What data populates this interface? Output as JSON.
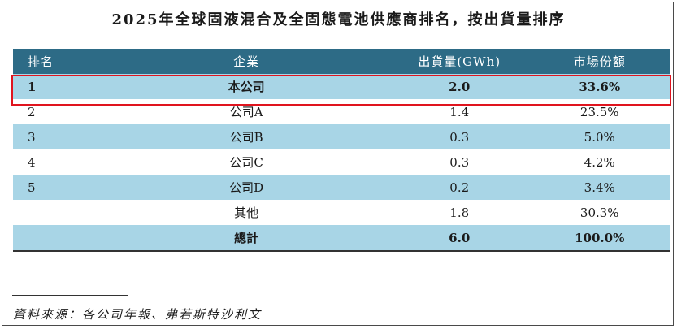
{
  "title": "2025年全球固液混合及全固態電池供應商排名，按出貨量排序",
  "table": {
    "headers": [
      "排名",
      "企業",
      "出貨量(GWh)",
      "市場份額"
    ],
    "rows": [
      {
        "rank": "1",
        "company": "本公司",
        "shipment": "2.0",
        "share": "33.6%"
      },
      {
        "rank": "2",
        "company": "公司A",
        "shipment": "1.4",
        "share": "23.5%"
      },
      {
        "rank": "3",
        "company": "公司B",
        "shipment": "0.3",
        "share": "5.0%"
      },
      {
        "rank": "4",
        "company": "公司C",
        "shipment": "0.3",
        "share": "4.2%"
      },
      {
        "rank": "5",
        "company": "公司D",
        "shipment": "0.2",
        "share": "3.4%"
      },
      {
        "rank": "",
        "company": "其他",
        "shipment": "1.8",
        "share": "30.3%"
      }
    ],
    "total": {
      "label": "總計",
      "shipment": "6.0",
      "share": "100.0%"
    }
  },
  "source": "資料來源：各公司年報、弗若斯特沙利文",
  "colors": {
    "header_bg": "#2d6b86",
    "row_shade": "#a8d5e6",
    "highlight_border": "#e0141e"
  }
}
